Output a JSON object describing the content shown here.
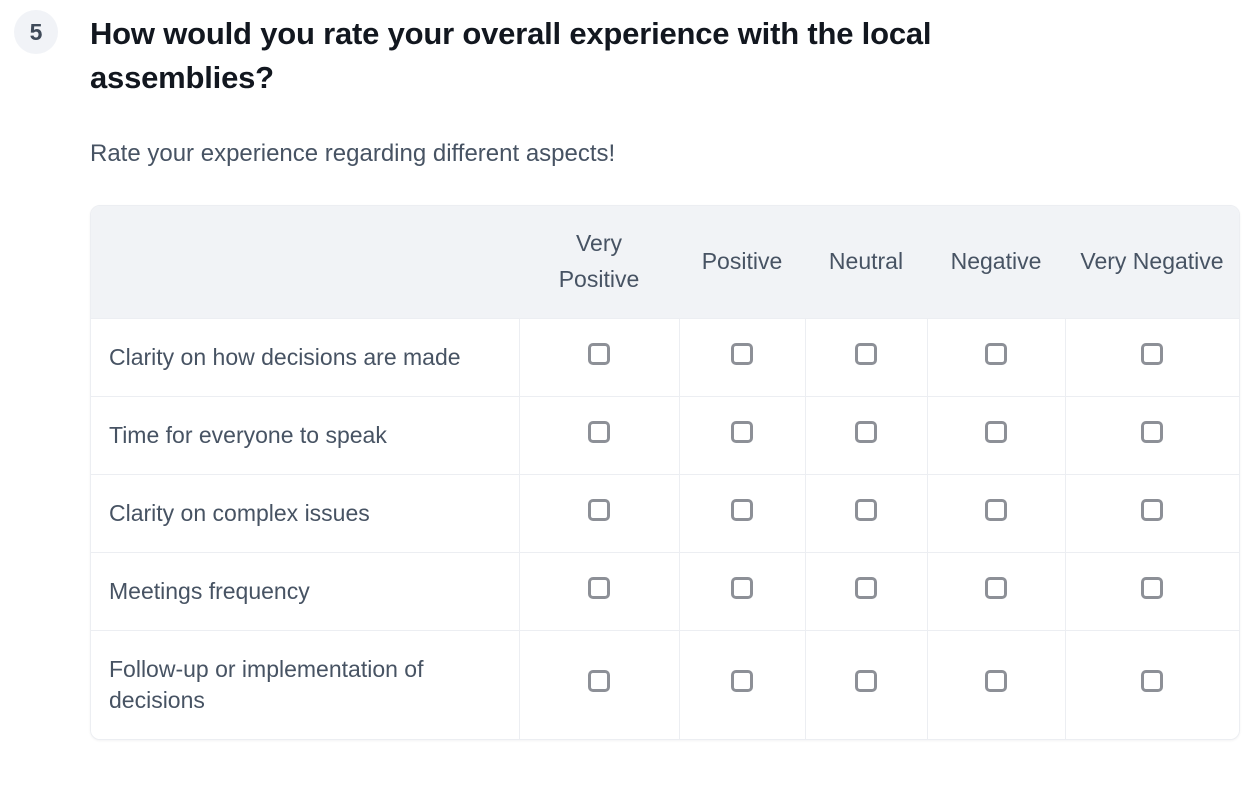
{
  "question": {
    "number": "5",
    "title": "How would you rate your overall experience with the local assemblies?",
    "subtitle": "Rate your experience regarding different aspects!"
  },
  "matrix": {
    "columns": [
      "Very Positive",
      "Positive",
      "Neutral",
      "Negative",
      "Very Negative"
    ],
    "rows": [
      "Clarity on how decisions are made",
      "Time for everyone to speak",
      "Clarity on complex issues",
      "Meetings frequency",
      "Follow-up or implementation of decisions"
    ],
    "checkbox_state": "unchecked"
  },
  "colors": {
    "title_color": "#12171f",
    "text_color": "#475363",
    "header_bg": "#f1f3f6",
    "divider": "#eceef2",
    "checkbox_border": "#8d9097",
    "badge_bg": "#f1f3f7",
    "row_bg": "#ffffff"
  }
}
